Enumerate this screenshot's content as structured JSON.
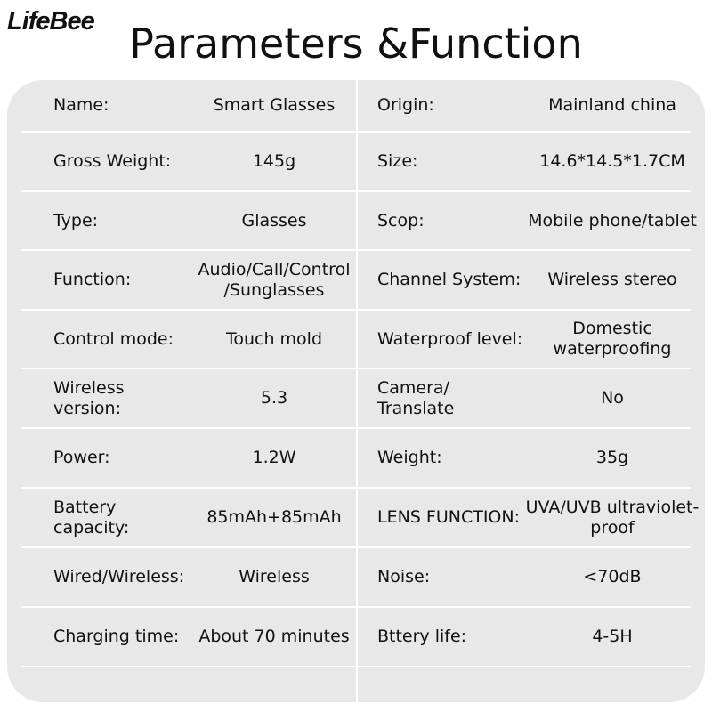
{
  "brand": "LifeBee",
  "title": "Parameters &Function",
  "rows": [
    {
      "l1": "Name:",
      "v1": "Smart Glasses",
      "l2": "Origin:",
      "v2": "Mainland china"
    },
    {
      "l1": "Gross Weight:",
      "v1": "145g",
      "l2": "Size:",
      "v2": "14.6*14.5*1.7CM"
    },
    {
      "l1": "Type:",
      "v1": "Glasses",
      "l2": "Scop:",
      "v2": "Mobile phone/tablet"
    },
    {
      "l1": "Function:",
      "v1": "Audio/Call/Control /Sunglasses",
      "l2": "Channel System:",
      "v2": "Wireless stereo"
    },
    {
      "l1": "Control mode:",
      "v1": "Touch mold",
      "l2": "Waterproof level:",
      "v2": "Domestic waterproofing"
    },
    {
      "l1": "Wireless version:",
      "v1": "5.3",
      "l2": "Camera/ Translate",
      "v2": "No"
    },
    {
      "l1": "Power:",
      "v1": "1.2W",
      "l2": "Weight:",
      "v2": "35g"
    },
    {
      "l1": "Battery capacity:",
      "v1": "85mAh+85mAh",
      "l2": "LENS FUNCTION:",
      "v2": "UVA/UVB ultraviolet-proof"
    },
    {
      "l1": "Wired/Wireless:",
      "v1": "Wireless",
      "l2": "Noise:",
      "v2": "<70dB"
    },
    {
      "l1": "Charging time:",
      "v1": "About 70 minutes",
      "l2": "Bttery life:",
      "v2": "4-5H"
    }
  ]
}
